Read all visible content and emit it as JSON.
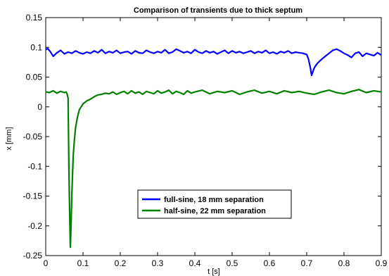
{
  "chart_data": {
    "type": "line",
    "title": "Comparison of transients due to thick septum",
    "xlabel": "t [s]",
    "ylabel": "x [mm]",
    "xlim": [
      0,
      0.9
    ],
    "ylim": [
      -0.25,
      0.15
    ],
    "xticks": [
      "0",
      "0.1",
      "0.2",
      "0.3",
      "0.4",
      "0.5",
      "0.6",
      "0.7",
      "0.8",
      "0.9"
    ],
    "yticks": [
      "0.15",
      "0.1",
      "0.05",
      "0",
      "-0.05",
      "-0.1",
      "-0.15",
      "-0.2",
      "-0.25"
    ],
    "grid": false,
    "legend_position": "lower-center",
    "series": [
      {
        "name": "full-sine, 18 mm separation",
        "color": "#0000ff",
        "x": [
          0,
          0.005,
          0.012,
          0.02,
          0.03,
          0.04,
          0.05,
          0.06,
          0.07,
          0.08,
          0.09,
          0.1,
          0.11,
          0.12,
          0.13,
          0.14,
          0.15,
          0.16,
          0.17,
          0.18,
          0.19,
          0.2,
          0.21,
          0.22,
          0.23,
          0.24,
          0.25,
          0.26,
          0.27,
          0.28,
          0.29,
          0.3,
          0.31,
          0.32,
          0.33,
          0.34,
          0.35,
          0.36,
          0.37,
          0.38,
          0.39,
          0.4,
          0.41,
          0.42,
          0.43,
          0.44,
          0.45,
          0.46,
          0.47,
          0.48,
          0.49,
          0.5,
          0.51,
          0.52,
          0.53,
          0.54,
          0.55,
          0.56,
          0.57,
          0.58,
          0.59,
          0.6,
          0.61,
          0.62,
          0.63,
          0.64,
          0.65,
          0.66,
          0.67,
          0.68,
          0.69,
          0.7,
          0.705,
          0.71,
          0.713,
          0.716,
          0.72,
          0.725,
          0.73,
          0.74,
          0.75,
          0.76,
          0.77,
          0.78,
          0.79,
          0.8,
          0.81,
          0.82,
          0.83,
          0.84,
          0.85,
          0.86,
          0.87,
          0.88,
          0.89,
          0.9
        ],
        "y": [
          0.096,
          0.098,
          0.093,
          0.085,
          0.091,
          0.095,
          0.089,
          0.092,
          0.09,
          0.094,
          0.091,
          0.089,
          0.092,
          0.09,
          0.094,
          0.091,
          0.096,
          0.09,
          0.093,
          0.091,
          0.095,
          0.09,
          0.092,
          0.093,
          0.089,
          0.094,
          0.091,
          0.09,
          0.095,
          0.092,
          0.09,
          0.093,
          0.091,
          0.096,
          0.09,
          0.092,
          0.097,
          0.094,
          0.091,
          0.093,
          0.09,
          0.096,
          0.092,
          0.09,
          0.094,
          0.091,
          0.093,
          0.089,
          0.092,
          0.095,
          0.09,
          0.094,
          0.091,
          0.093,
          0.09,
          0.092,
          0.094,
          0.09,
          0.093,
          0.091,
          0.095,
          0.09,
          0.092,
          0.089,
          0.093,
          0.091,
          0.094,
          0.09,
          0.092,
          0.091,
          0.09,
          0.088,
          0.08,
          0.065,
          0.053,
          0.058,
          0.065,
          0.07,
          0.074,
          0.08,
          0.085,
          0.09,
          0.095,
          0.097,
          0.094,
          0.09,
          0.087,
          0.083,
          0.09,
          0.092,
          0.085,
          0.09,
          0.088,
          0.086,
          0.091,
          0.087
        ]
      },
      {
        "name": "half-sine, 22 mm separation",
        "color": "#008000",
        "x": [
          0,
          0.01,
          0.02,
          0.03,
          0.04,
          0.05,
          0.055,
          0.058,
          0.06,
          0.062,
          0.064,
          0.066,
          0.068,
          0.07,
          0.072,
          0.074,
          0.077,
          0.08,
          0.085,
          0.09,
          0.095,
          0.1,
          0.11,
          0.12,
          0.13,
          0.14,
          0.15,
          0.16,
          0.17,
          0.18,
          0.19,
          0.2,
          0.21,
          0.22,
          0.23,
          0.24,
          0.25,
          0.26,
          0.27,
          0.28,
          0.29,
          0.3,
          0.31,
          0.32,
          0.33,
          0.34,
          0.35,
          0.36,
          0.37,
          0.38,
          0.39,
          0.4,
          0.42,
          0.44,
          0.46,
          0.48,
          0.5,
          0.52,
          0.54,
          0.56,
          0.58,
          0.6,
          0.62,
          0.64,
          0.66,
          0.68,
          0.7,
          0.72,
          0.74,
          0.76,
          0.78,
          0.8,
          0.82,
          0.84,
          0.86,
          0.88,
          0.9
        ],
        "y": [
          0.025,
          0.024,
          0.027,
          0.023,
          0.026,
          0.024,
          0.025,
          0.02,
          0.015,
          -0.1,
          -0.17,
          -0.236,
          -0.2,
          -0.15,
          -0.11,
          -0.08,
          -0.055,
          -0.035,
          -0.018,
          -0.005,
          0.0,
          0.005,
          0.01,
          0.013,
          0.017,
          0.02,
          0.021,
          0.023,
          0.022,
          0.025,
          0.021,
          0.024,
          0.026,
          0.022,
          0.027,
          0.023,
          0.025,
          0.021,
          0.026,
          0.024,
          0.022,
          0.027,
          0.023,
          0.025,
          0.028,
          0.022,
          0.026,
          0.024,
          0.021,
          0.027,
          0.023,
          0.025,
          0.028,
          0.022,
          0.026,
          0.024,
          0.027,
          0.021,
          0.025,
          0.028,
          0.023,
          0.026,
          0.022,
          0.027,
          0.024,
          0.026,
          0.023,
          0.021,
          0.025,
          0.028,
          0.024,
          0.022,
          0.026,
          0.029,
          0.024,
          0.027,
          0.025
        ]
      }
    ]
  }
}
